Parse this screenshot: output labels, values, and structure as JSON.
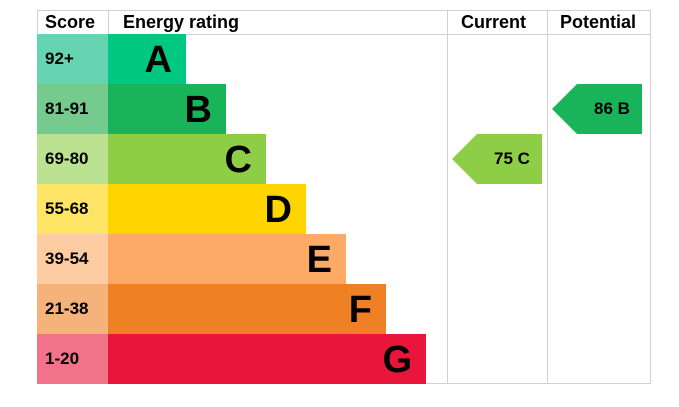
{
  "chart_data": {
    "type": "table",
    "headers": {
      "score": "Score",
      "rating": "Energy rating",
      "current": "Current",
      "potential": "Potential"
    },
    "bands": [
      {
        "score": "92+",
        "letter": "A",
        "color": "#00c781",
        "light": "#66d4b0"
      },
      {
        "score": "81-91",
        "letter": "B",
        "color": "#19b459",
        "light": "#75cb8e"
      },
      {
        "score": "69-80",
        "letter": "C",
        "color": "#8dce46",
        "light": "#bbe290"
      },
      {
        "score": "55-68",
        "letter": "D",
        "color": "#ffd500",
        "light": "#ffe566"
      },
      {
        "score": "39-54",
        "letter": "E",
        "color": "#fcaa65",
        "light": "#fdcca3"
      },
      {
        "score": "21-38",
        "letter": "F",
        "color": "#ef8023",
        "light": "#f5b37b"
      },
      {
        "score": "1-20",
        "letter": "G",
        "color": "#e9153b",
        "light": "#f27389"
      }
    ],
    "current": {
      "value": 75,
      "letter": "C",
      "label": "75  C"
    },
    "potential": {
      "value": 86,
      "letter": "B",
      "label": "86  B"
    }
  }
}
